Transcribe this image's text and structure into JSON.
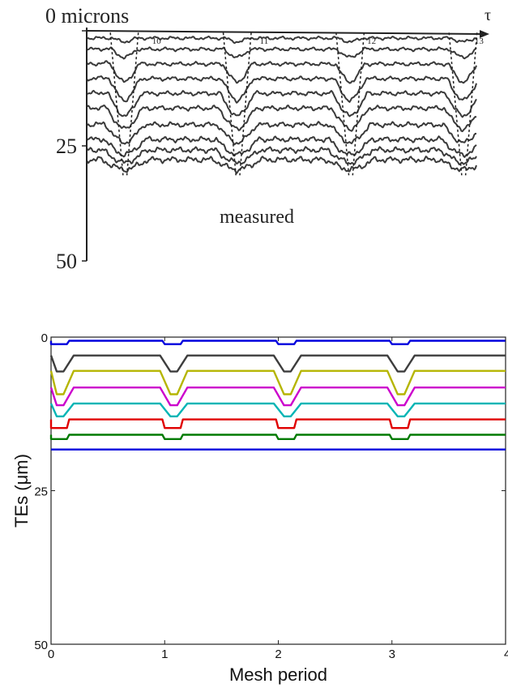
{
  "chart_data": [
    {
      "type": "line",
      "title": "",
      "xlabel": "τ",
      "ylabel": "",
      "y_tick_labels": [
        "0 microns",
        "25",
        "50"
      ],
      "y_ticks": [
        0,
        25,
        50
      ],
      "x_tick_labels": [
        "10",
        "11",
        "12",
        "13"
      ],
      "x_ticks": [
        10,
        11,
        12,
        13
      ],
      "xlim": [
        9.35,
        13.05
      ],
      "ylim": [
        0,
        50
      ],
      "annotation": "measured",
      "style": "hand-drawn scanned traces",
      "trough_x": [
        9.7,
        10.75,
        11.8,
        12.85
      ],
      "series": [
        {
          "offset": 1.6,
          "depth": 0.8,
          "color": "#3a3a3a"
        },
        {
          "offset": 4.0,
          "depth": 1.8,
          "color": "#3a3a3a"
        },
        {
          "offset": 7.2,
          "depth": 4.0,
          "color": "#3a3a3a"
        },
        {
          "offset": 10.4,
          "depth": 4.8,
          "color": "#3a3a3a"
        },
        {
          "offset": 13.6,
          "depth": 5.0,
          "color": "#3a3a3a"
        },
        {
          "offset": 16.8,
          "depth": 4.6,
          "color": "#3a3a3a"
        },
        {
          "offset": 20.4,
          "depth": 4.0,
          "color": "#3a3a3a"
        },
        {
          "offset": 23.6,
          "depth": 3.4,
          "color": "#3a3a3a"
        },
        {
          "offset": 25.9,
          "depth": 2.8,
          "color": "#3a3a3a"
        },
        {
          "offset": 28.0,
          "depth": 2.2,
          "color": "#3a3a3a"
        }
      ]
    },
    {
      "type": "line",
      "title": "",
      "xlabel": "Mesh period",
      "ylabel": "TEs (μm)",
      "x_tick_labels": [
        "0",
        "1",
        "2",
        "3",
        "4"
      ],
      "x_ticks": [
        0,
        1,
        2,
        3,
        4
      ],
      "y_tick_labels": [
        "0",
        "25",
        "50"
      ],
      "y_ticks": [
        0,
        25,
        50
      ],
      "xlim": [
        0,
        4
      ],
      "ylim": [
        0,
        50
      ],
      "y_inverted": true,
      "grid": false,
      "trough_x": [
        0.08,
        1.08,
        2.08,
        3.08
      ],
      "series": [
        {
          "color": "#0000dd",
          "base": 0.6,
          "depth": 0.55,
          "shape": "square"
        },
        {
          "color": "#3d3d3d",
          "base": 3.0,
          "depth": 2.6,
          "shape": "v"
        },
        {
          "color": "#b5b500",
          "base": 5.5,
          "depth": 3.8,
          "shape": "v"
        },
        {
          "color": "#cc00cc",
          "base": 8.2,
          "depth": 2.9,
          "shape": "v"
        },
        {
          "color": "#00b5b5",
          "base": 10.8,
          "depth": 2.1,
          "shape": "v"
        },
        {
          "color": "#e00000",
          "base": 13.4,
          "depth": 1.4,
          "shape": "square"
        },
        {
          "color": "#007a00",
          "base": 15.9,
          "depth": 0.7,
          "shape": "square"
        },
        {
          "color": "#0000dd",
          "base": 18.3,
          "depth": 0.0,
          "shape": "flat"
        }
      ]
    }
  ]
}
